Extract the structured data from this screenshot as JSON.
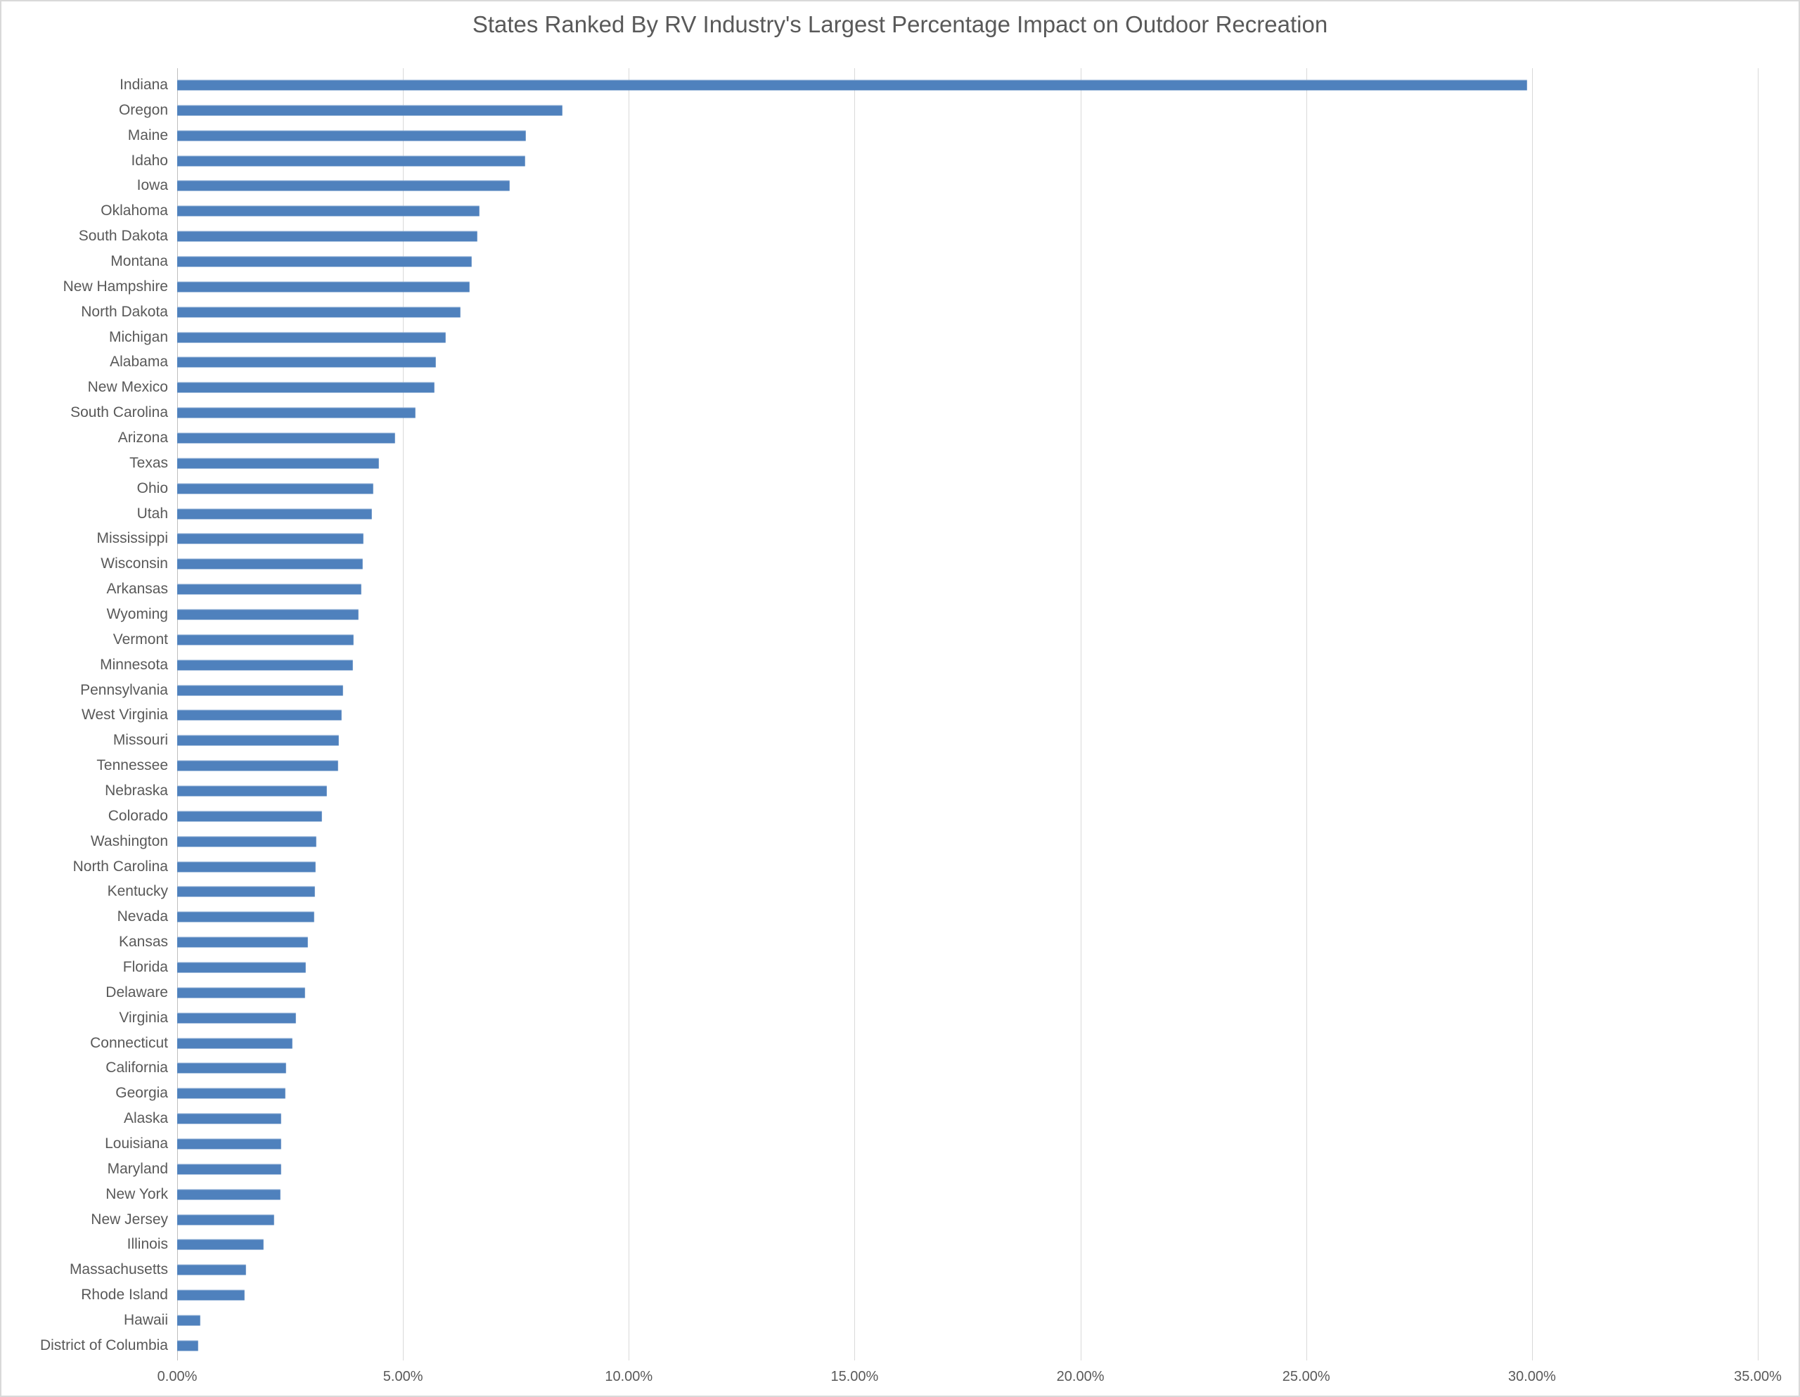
{
  "page": {
    "background": "#ffffff",
    "border_color": "#d9d9d9"
  },
  "chart_data": {
    "type": "bar",
    "orientation": "horizontal",
    "title": "States Ranked By RV Industry's Largest Percentage Impact on Outdoor Recreation",
    "xlabel": "",
    "ylabel": "",
    "xlim": [
      0,
      35
    ],
    "x_tick_values": [
      0,
      5,
      10,
      15,
      20,
      25,
      30,
      35
    ],
    "x_tick_labels": [
      "0.00%",
      "5.00%",
      "10.00%",
      "15.00%",
      "20.00%",
      "25.00%",
      "30.00%",
      "35.00%"
    ],
    "grid": true,
    "legend": false,
    "value_unit": "percent",
    "colors": {
      "bar": "#4f81bd",
      "gridline": "#d9d9d9",
      "axis_line": "#bfbfbf",
      "text": "#595959"
    },
    "categories": [
      "Indiana",
      "Oregon",
      "Maine",
      "Idaho",
      "Iowa",
      "Oklahoma",
      "South Dakota",
      "Montana",
      "New Hampshire",
      "North Dakota",
      "Michigan",
      "Alabama",
      "New Mexico",
      "South Carolina",
      "Arizona",
      "Texas",
      "Ohio",
      "Utah",
      "Mississippi",
      "Wisconsin",
      "Arkansas",
      "Wyoming",
      "Vermont",
      "Minnesota",
      "Pennsylvania",
      "West Virginia",
      "Missouri",
      "Tennessee",
      "Nebraska",
      "Colorado",
      "Washington",
      "North Carolina",
      "Kentucky",
      "Nevada",
      "Kansas",
      "Florida",
      "Delaware",
      "Virginia",
      "Connecticut",
      "California",
      "Georgia",
      "Alaska",
      "Louisiana",
      "Maryland",
      "New York",
      "New Jersey",
      "Illinois",
      "Massachusetts",
      "Rhode Island",
      "Hawaii",
      "District of Columbia"
    ],
    "values": [
      29.9,
      8.53,
      7.72,
      7.71,
      7.37,
      6.7,
      6.65,
      6.53,
      6.47,
      6.27,
      5.95,
      5.73,
      5.7,
      5.28,
      4.83,
      4.47,
      4.35,
      4.32,
      4.12,
      4.11,
      4.08,
      4.01,
      3.91,
      3.89,
      3.68,
      3.64,
      3.58,
      3.56,
      3.31,
      3.2,
      3.09,
      3.06,
      3.05,
      3.03,
      2.89,
      2.85,
      2.84,
      2.63,
      2.55,
      2.41,
      2.4,
      2.31,
      2.31,
      2.3,
      2.29,
      2.15,
      1.92,
      1.53,
      1.5,
      0.51,
      0.47
    ]
  }
}
